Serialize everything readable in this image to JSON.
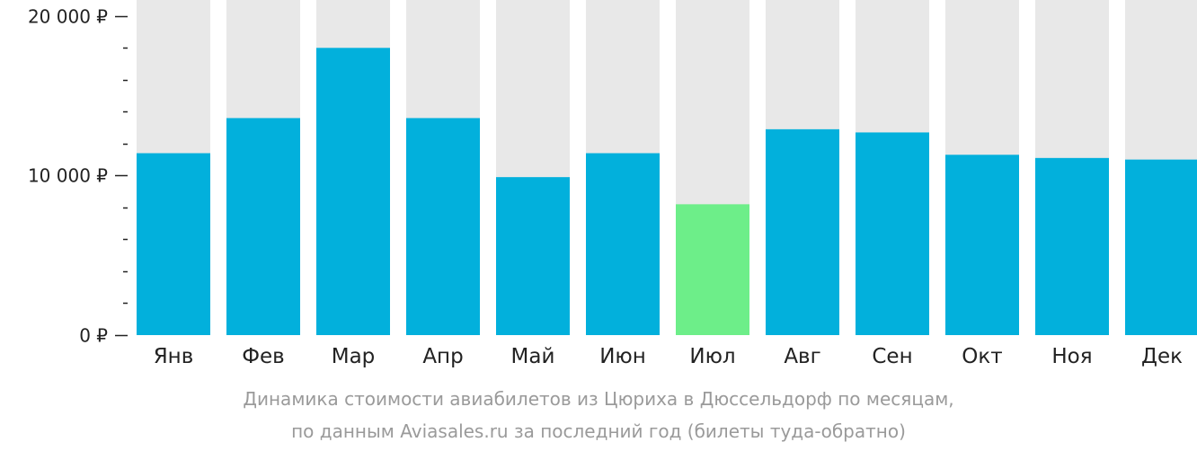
{
  "chart_data": {
    "type": "bar",
    "categories": [
      "Янв",
      "Фев",
      "Мар",
      "Апр",
      "Май",
      "Июн",
      "Июл",
      "Авг",
      "Сен",
      "Окт",
      "Ноя",
      "Дек"
    ],
    "values": [
      11400,
      13600,
      18000,
      13600,
      9900,
      11400,
      8200,
      12900,
      12700,
      11300,
      11100,
      11000
    ],
    "ylim": [
      0,
      21000
    ],
    "y_ticks": [
      {
        "value": 0,
        "label": "0 ₽"
      },
      {
        "value": 10000,
        "label": "10 000 ₽"
      },
      {
        "value": 20000,
        "label": "20 000 ₽"
      }
    ],
    "y_minor_step": 2000,
    "highlight_index": 6,
    "colors": {
      "bar": "#02b0dc",
      "highlight": "#6dee89",
      "background_bar": "#e8e8e8",
      "axis": "#222222",
      "caption": "#9a9a9a"
    },
    "grid": false,
    "legend": "none"
  },
  "caption": {
    "line1": "Динамика стоимости авиабилетов из Цюриха в Дюссельдорф по месяцам,",
    "line2": "по данным Aviasales.ru за последний год (билеты туда-обратно)"
  }
}
